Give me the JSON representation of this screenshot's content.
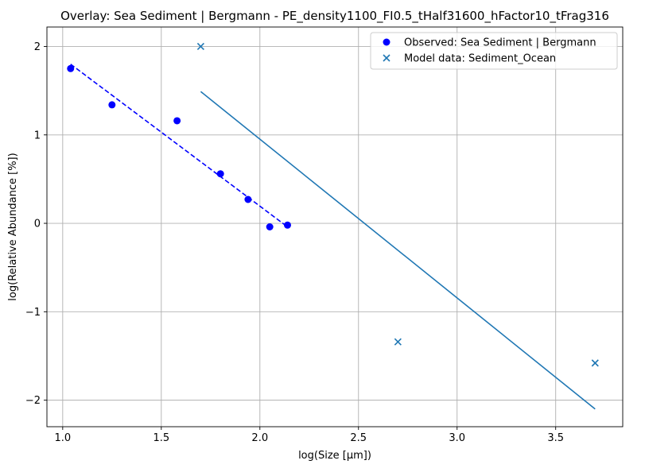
{
  "chart_data": {
    "type": "scatter",
    "title": "Overlay: Sea Sediment | Bergmann - PE_density1100_FI0.5_tHalf31600_hFactor10_tFrag316",
    "xlabel": "log(Size [µm])",
    "ylabel": "log(Relative Abundance [%])",
    "xlim": [
      0.92,
      3.84
    ],
    "ylim": [
      -2.3,
      2.22
    ],
    "xticks": [
      1.0,
      1.5,
      2.0,
      2.5,
      3.0,
      3.5
    ],
    "xtick_labels": [
      "1.0",
      "1.5",
      "2.0",
      "2.5",
      "3.0",
      "3.5"
    ],
    "yticks": [
      -2,
      -1,
      0,
      1,
      2
    ],
    "ytick_labels": [
      "−2",
      "−1",
      "0",
      "1",
      "2"
    ],
    "grid": true,
    "legend_position": "top-right",
    "series": [
      {
        "name": "Observed: Sea Sediment | Bergmann",
        "kind": "scatter",
        "marker": "circle",
        "color": "#0000ff",
        "x": [
          1.04,
          1.25,
          1.58,
          1.8,
          1.94,
          2.05,
          2.14
        ],
        "y": [
          1.75,
          1.34,
          1.16,
          0.56,
          0.27,
          -0.04,
          -0.02
        ]
      },
      {
        "kind": "line",
        "style": "dashed",
        "color": "#0000ff",
        "x": [
          1.04,
          2.14
        ],
        "y": [
          1.8,
          -0.04
        ]
      },
      {
        "name": "Model data: Sediment_Ocean",
        "kind": "scatter",
        "marker": "x",
        "color": "#1f77b4",
        "x": [
          1.7,
          2.7,
          3.7
        ],
        "y": [
          2.0,
          -1.34,
          -1.58
        ]
      },
      {
        "kind": "line",
        "style": "solid",
        "color": "#1f77b4",
        "x": [
          1.7,
          3.7
        ],
        "y": [
          1.49,
          -2.1
        ]
      }
    ]
  }
}
